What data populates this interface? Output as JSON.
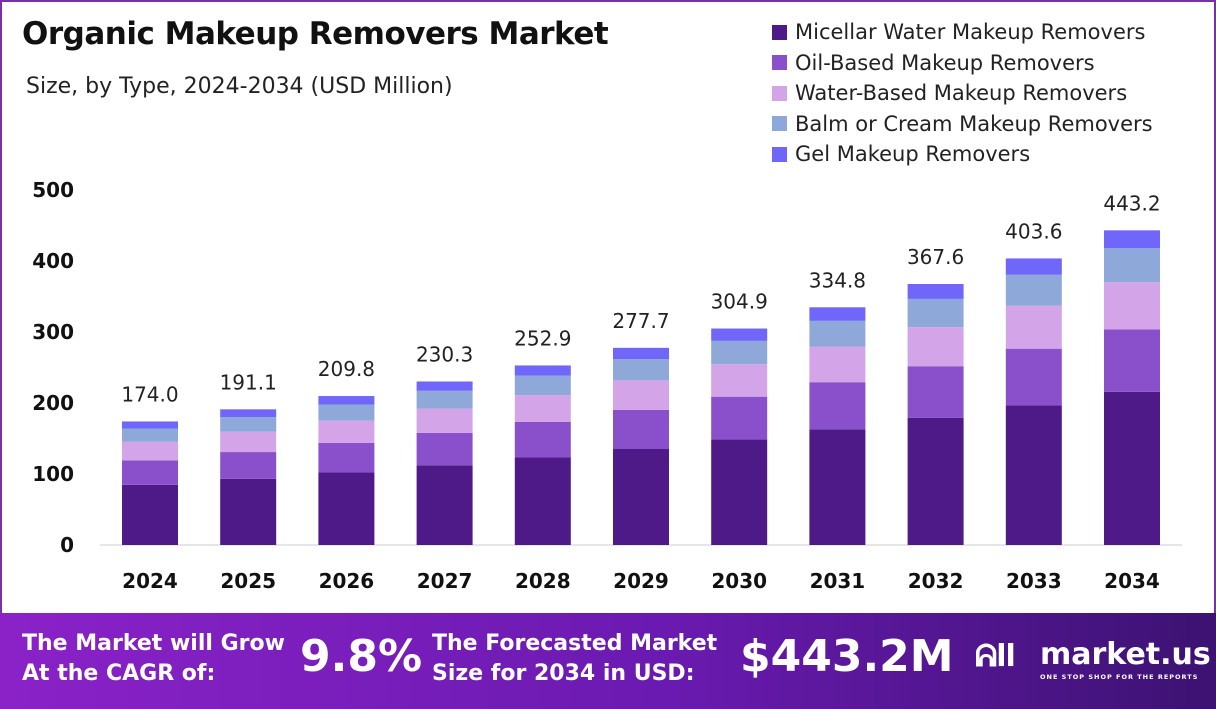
{
  "chart_data": {
    "type": "bar",
    "stacked": true,
    "title": "Organic Makeup Removers Market",
    "subtitle": "Size, by Type, 2024-2034 (USD Million)",
    "categories": [
      "2024",
      "2025",
      "2026",
      "2027",
      "2028",
      "2029",
      "2030",
      "2031",
      "2032",
      "2033",
      "2034"
    ],
    "totals": [
      "174.0",
      "191.1",
      "209.8",
      "230.3",
      "252.9",
      "277.7",
      "304.9",
      "334.8",
      "367.6",
      "403.6",
      "443.2"
    ],
    "series": [
      {
        "name": "Micellar Water Makeup Removers",
        "color": "#4e1a87",
        "values": [
          84.7,
          93.1,
          102.2,
          112.2,
          123.2,
          135.2,
          148.5,
          163.0,
          179.0,
          196.6,
          215.8
        ]
      },
      {
        "name": "Oil-Based Makeup Removers",
        "color": "#8a4fcb",
        "values": [
          34.5,
          37.8,
          41.5,
          45.6,
          50.1,
          55.0,
          60.4,
          66.3,
          72.8,
          79.9,
          87.8
        ]
      },
      {
        "name": "Water-Based Makeup Removers",
        "color": "#d3a5e8",
        "values": [
          26.1,
          28.7,
          31.5,
          34.5,
          37.9,
          41.7,
          45.7,
          50.2,
          55.1,
          60.5,
          66.5
        ]
      },
      {
        "name": "Balm or Cream Makeup Removers",
        "color": "#8ea8da",
        "values": [
          18.8,
          20.6,
          22.7,
          24.9,
          27.3,
          30.0,
          32.9,
          36.2,
          39.7,
          43.6,
          47.9
        ]
      },
      {
        "name": "Gel Makeup Removers",
        "color": "#7066fa",
        "values": [
          9.9,
          10.9,
          11.9,
          13.1,
          14.4,
          15.8,
          17.4,
          19.1,
          21.0,
          23.0,
          25.2
        ]
      }
    ],
    "yticks": [
      "0",
      "100",
      "200",
      "300",
      "400",
      "500"
    ],
    "ylim": [
      0,
      500
    ],
    "grid": false,
    "legend": "top-right"
  },
  "footer": {
    "cagr_label_1": "The Market will Grow",
    "cagr_label_2": "At the CAGR of:",
    "cagr_value": "9.8%",
    "forecast_label_1": "The Forecasted Market",
    "forecast_label_2": "Size for 2034 in USD:",
    "forecast_value": "$443.2M",
    "brand": "market.us",
    "tagline": "ONE STOP SHOP FOR THE REPORTS"
  }
}
